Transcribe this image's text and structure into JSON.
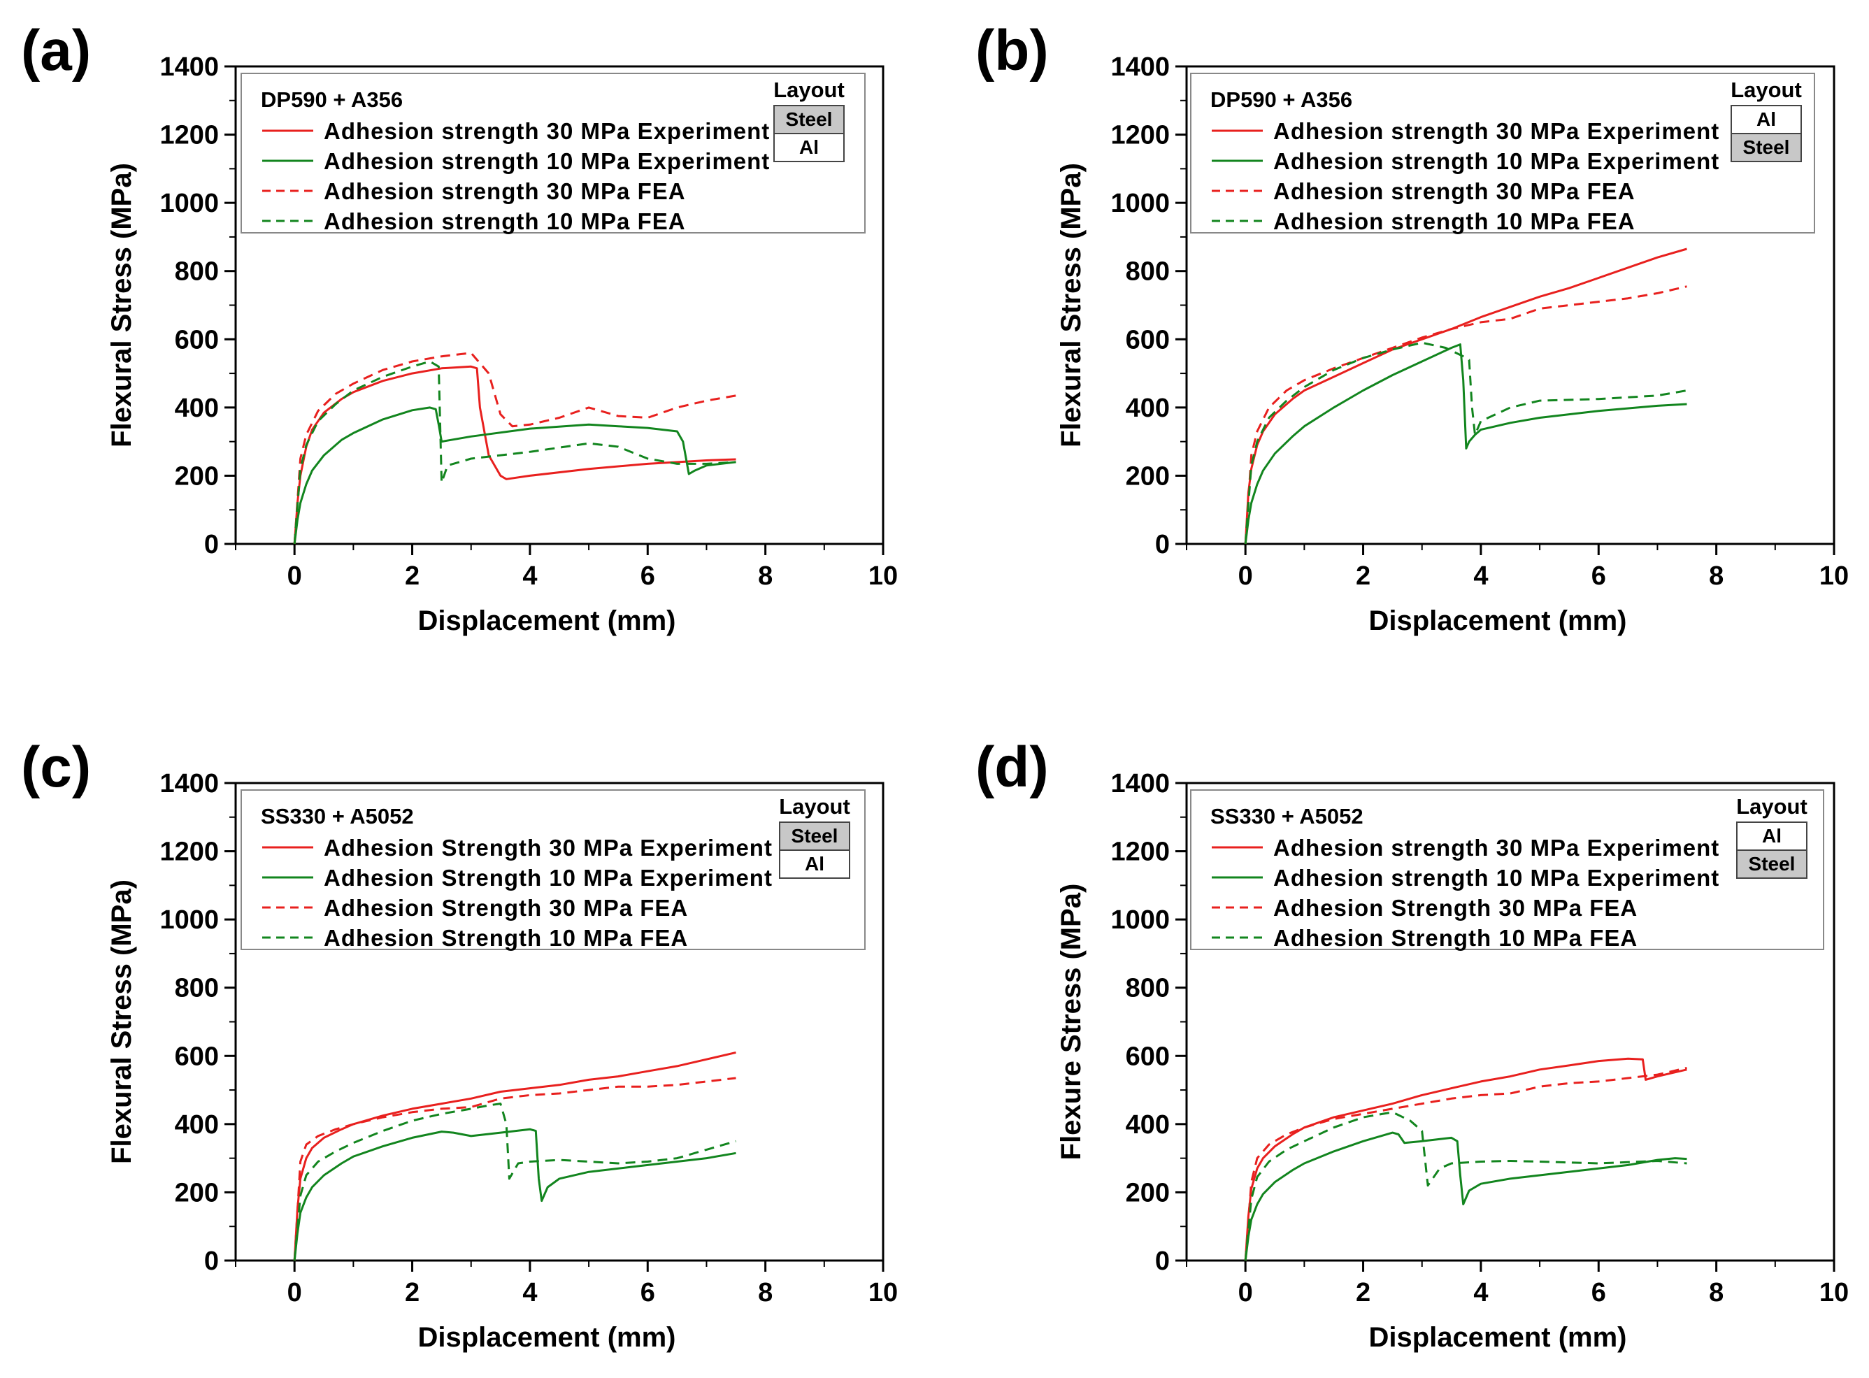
{
  "figure_colors": {
    "experiment_30": "#e8201e",
    "experiment_10": "#12851e",
    "fea_30": "#e8201e",
    "fea_10": "#12851e",
    "steel_fill": "#c8c8c8",
    "al_fill": "#ffffff"
  },
  "chart_data": [
    {
      "type": "line",
      "panel": "(a)",
      "xlabel": "Displacement (mm)",
      "ylabel": "Flexural Stress (MPa)",
      "xlim": [
        -1,
        10
      ],
      "ylim": [
        0,
        1400
      ],
      "xticks": [
        0,
        2,
        4,
        6,
        8,
        10
      ],
      "yticks": [
        0,
        200,
        400,
        600,
        800,
        1000,
        1200,
        1400
      ],
      "legend_title": "DP590 + A356",
      "layout_title": "Layout",
      "layout": [
        {
          "label": "Steel",
          "fill": "steel"
        },
        {
          "label": "Al",
          "fill": "al"
        }
      ],
      "series": [
        {
          "name": "Adhesion strength 30 MPa Experiment",
          "color": "#e8201e",
          "style": "solid",
          "x": [
            0,
            0.05,
            0.1,
            0.2,
            0.3,
            0.5,
            0.8,
            1.0,
            1.5,
            2.0,
            2.5,
            3.0,
            3.1,
            3.15,
            3.3,
            3.5,
            3.6,
            4.0,
            5.0,
            6.0,
            7.0,
            7.5
          ],
          "y": [
            0,
            120,
            200,
            285,
            335,
            385,
            425,
            445,
            478,
            500,
            515,
            520,
            515,
            400,
            260,
            200,
            190,
            200,
            220,
            235,
            245,
            248
          ]
        },
        {
          "name": "Adhesion strength 10 MPa Experiment",
          "color": "#12851e",
          "style": "solid",
          "x": [
            0,
            0.05,
            0.1,
            0.2,
            0.3,
            0.5,
            0.8,
            1.0,
            1.5,
            2.0,
            2.3,
            2.4,
            2.45,
            2.5,
            3.0,
            4.0,
            5.0,
            5.5,
            6.0,
            6.5,
            6.6,
            6.7,
            6.8,
            7.0,
            7.5
          ],
          "y": [
            0,
            70,
            120,
            175,
            215,
            260,
            305,
            325,
            365,
            392,
            400,
            395,
            350,
            300,
            315,
            338,
            350,
            345,
            340,
            330,
            300,
            205,
            215,
            230,
            240
          ]
        },
        {
          "name": "Adhesion strength 30 MPa FEA",
          "color": "#e8201e",
          "style": "dashed",
          "x": [
            0,
            0.1,
            0.2,
            0.4,
            0.7,
            1.0,
            1.5,
            2.0,
            2.5,
            3.0,
            3.3,
            3.5,
            3.7,
            4.0,
            4.5,
            5.0,
            5.5,
            6.0,
            6.5,
            7.0,
            7.5
          ],
          "y": [
            0,
            250,
            320,
            390,
            440,
            470,
            510,
            535,
            550,
            560,
            500,
            380,
            345,
            350,
            370,
            400,
            375,
            370,
            400,
            420,
            435
          ]
        },
        {
          "name": "Adhesion strength 10 MPa FEA",
          "color": "#12851e",
          "style": "dashed",
          "x": [
            0,
            0.1,
            0.2,
            0.4,
            0.7,
            1.0,
            1.5,
            2.0,
            2.3,
            2.45,
            2.5,
            2.6,
            3.0,
            4.0,
            5.0,
            5.5,
            6.0,
            6.5,
            7.0,
            7.5
          ],
          "y": [
            0,
            220,
            290,
            360,
            410,
            450,
            490,
            520,
            535,
            520,
            180,
            230,
            250,
            270,
            295,
            285,
            250,
            235,
            235,
            240
          ]
        }
      ]
    },
    {
      "type": "line",
      "panel": "(b)",
      "xlabel": "Displacement (mm)",
      "ylabel": "Flexural Stress (MPa)",
      "xlim": [
        -1,
        10
      ],
      "ylim": [
        0,
        1400
      ],
      "xticks": [
        0,
        2,
        4,
        6,
        8,
        10
      ],
      "yticks": [
        0,
        200,
        400,
        600,
        800,
        1000,
        1200,
        1400
      ],
      "legend_title": "DP590 + A356",
      "layout_title": "Layout",
      "layout": [
        {
          "label": "Al",
          "fill": "al"
        },
        {
          "label": "Steel",
          "fill": "steel"
        }
      ],
      "series": [
        {
          "name": "Adhesion strength 30 MPa Experiment",
          "color": "#e8201e",
          "style": "solid",
          "x": [
            0,
            0.05,
            0.1,
            0.2,
            0.3,
            0.5,
            0.8,
            1.0,
            1.5,
            2.0,
            2.5,
            3.0,
            3.5,
            4.0,
            4.5,
            5.0,
            5.5,
            6.0,
            6.5,
            7.0,
            7.5
          ],
          "y": [
            0,
            150,
            220,
            290,
            330,
            380,
            425,
            450,
            490,
            530,
            570,
            600,
            630,
            665,
            695,
            725,
            750,
            780,
            810,
            840,
            865
          ]
        },
        {
          "name": "Adhesion strength 10 MPa Experiment",
          "color": "#12851e",
          "style": "solid",
          "x": [
            0,
            0.05,
            0.1,
            0.2,
            0.3,
            0.5,
            0.8,
            1.0,
            1.5,
            2.0,
            2.5,
            3.0,
            3.5,
            3.65,
            3.7,
            3.75,
            3.8,
            3.9,
            4.0,
            4.5,
            5.0,
            6.0,
            7.0,
            7.5
          ],
          "y": [
            0,
            70,
            120,
            175,
            215,
            265,
            315,
            345,
            400,
            450,
            495,
            535,
            575,
            585,
            480,
            280,
            300,
            320,
            335,
            355,
            370,
            390,
            405,
            410
          ]
        },
        {
          "name": "Adhesion strength 30 MPa FEA",
          "color": "#e8201e",
          "style": "dashed",
          "x": [
            0,
            0.1,
            0.2,
            0.4,
            0.7,
            1.0,
            1.5,
            2.0,
            2.5,
            3.0,
            3.5,
            4.0,
            4.5,
            5.0,
            5.5,
            6.0,
            6.5,
            7.0,
            7.5
          ],
          "y": [
            0,
            260,
            330,
            400,
            450,
            480,
            515,
            545,
            575,
            605,
            630,
            650,
            660,
            690,
            700,
            710,
            720,
            735,
            755
          ]
        },
        {
          "name": "Adhesion strength 10 MPa FEA",
          "color": "#12851e",
          "style": "dashed",
          "x": [
            0,
            0.1,
            0.2,
            0.4,
            0.7,
            1.0,
            1.5,
            2.0,
            2.5,
            3.0,
            3.4,
            3.7,
            3.8,
            3.85,
            3.9,
            4.0,
            4.5,
            5.0,
            6.0,
            7.0,
            7.5
          ],
          "y": [
            0,
            230,
            300,
            370,
            420,
            460,
            510,
            545,
            570,
            590,
            575,
            550,
            540,
            400,
            320,
            360,
            400,
            420,
            425,
            435,
            450
          ]
        }
      ]
    },
    {
      "type": "line",
      "panel": "(c)",
      "xlabel": "Displacement (mm)",
      "ylabel": "Flexural Stress (MPa)",
      "xlim": [
        -1,
        10
      ],
      "ylim": [
        0,
        1400
      ],
      "xticks": [
        0,
        2,
        4,
        6,
        8,
        10
      ],
      "yticks": [
        0,
        200,
        400,
        600,
        800,
        1000,
        1200,
        1400
      ],
      "legend_title": "SS330 + A5052",
      "layout_title": "Layout",
      "layout": [
        {
          "label": "Steel",
          "fill": "steel"
        },
        {
          "label": "Al",
          "fill": "al"
        }
      ],
      "series": [
        {
          "name": "Adhesion Strength 30 MPa Experiment",
          "color": "#e8201e",
          "style": "solid",
          "x": [
            0,
            0.05,
            0.1,
            0.2,
            0.3,
            0.5,
            0.8,
            1.0,
            1.5,
            2.0,
            2.5,
            3.0,
            3.5,
            4.0,
            4.5,
            5.0,
            5.5,
            6.0,
            6.5,
            7.0,
            7.5
          ],
          "y": [
            0,
            150,
            240,
            300,
            330,
            360,
            385,
            400,
            425,
            445,
            460,
            475,
            495,
            505,
            515,
            530,
            540,
            555,
            570,
            590,
            610
          ]
        },
        {
          "name": "Adhesion Strength 10 MPa Experiment",
          "color": "#12851e",
          "style": "solid",
          "x": [
            0,
            0.05,
            0.1,
            0.2,
            0.3,
            0.5,
            0.8,
            1.0,
            1.5,
            2.0,
            2.5,
            2.7,
            3.0,
            3.5,
            4.0,
            4.1,
            4.15,
            4.2,
            4.3,
            4.5,
            5.0,
            6.0,
            7.0,
            7.5
          ],
          "y": [
            0,
            80,
            140,
            185,
            215,
            250,
            285,
            305,
            335,
            360,
            378,
            375,
            365,
            375,
            385,
            380,
            240,
            175,
            215,
            240,
            260,
            280,
            300,
            315
          ]
        },
        {
          "name": "Adhesion Strength 30 MPa FEA",
          "color": "#e8201e",
          "style": "dashed",
          "x": [
            0,
            0.1,
            0.2,
            0.4,
            0.7,
            1.0,
            1.5,
            2.0,
            2.5,
            3.0,
            3.5,
            4.0,
            4.5,
            5.0,
            5.5,
            6.0,
            6.5,
            7.0,
            7.5
          ],
          "y": [
            0,
            290,
            340,
            365,
            385,
            400,
            420,
            435,
            445,
            450,
            475,
            485,
            490,
            500,
            510,
            510,
            515,
            525,
            535
          ]
        },
        {
          "name": "Adhesion Strength 10 MPa FEA",
          "color": "#12851e",
          "style": "dashed",
          "x": [
            0,
            0.1,
            0.2,
            0.4,
            0.7,
            1.0,
            1.5,
            2.0,
            2.5,
            3.0,
            3.3,
            3.5,
            3.6,
            3.65,
            3.8,
            4.0,
            4.5,
            5.0,
            5.5,
            6.0,
            6.5,
            7.0,
            7.5
          ],
          "y": [
            0,
            190,
            250,
            290,
            320,
            345,
            380,
            410,
            430,
            445,
            455,
            460,
            400,
            240,
            285,
            290,
            295,
            290,
            285,
            290,
            300,
            325,
            350
          ]
        }
      ]
    },
    {
      "type": "line",
      "panel": "(d)",
      "xlabel": "Displacement (mm)",
      "ylabel": "Flexure Stress (MPa)",
      "xlim": [
        -1,
        10
      ],
      "ylim": [
        0,
        1400
      ],
      "xticks": [
        0,
        2,
        4,
        6,
        8,
        10
      ],
      "yticks": [
        0,
        200,
        400,
        600,
        800,
        1000,
        1200,
        1400
      ],
      "legend_title": "SS330 + A5052",
      "layout_title": "Layout",
      "layout": [
        {
          "label": "Al",
          "fill": "al"
        },
        {
          "label": "Steel",
          "fill": "steel"
        }
      ],
      "series": [
        {
          "name": "Adhesion strength 30 MPa Experiment",
          "color": "#e8201e",
          "style": "solid",
          "x": [
            0,
            0.05,
            0.1,
            0.2,
            0.3,
            0.5,
            0.8,
            1.0,
            1.5,
            2.0,
            2.5,
            3.0,
            3.5,
            4.0,
            4.5,
            5.0,
            5.5,
            6.0,
            6.5,
            6.75,
            6.8,
            7.0,
            7.5
          ],
          "y": [
            0,
            130,
            210,
            270,
            300,
            335,
            370,
            390,
            420,
            440,
            460,
            485,
            505,
            525,
            540,
            560,
            572,
            585,
            592,
            590,
            530,
            540,
            560
          ]
        },
        {
          "name": "Adhesion strength 10 MPa Experiment",
          "color": "#12851e",
          "style": "solid",
          "x": [
            0,
            0.05,
            0.1,
            0.2,
            0.3,
            0.5,
            0.8,
            1.0,
            1.5,
            2.0,
            2.5,
            2.6,
            2.7,
            3.0,
            3.5,
            3.6,
            3.65,
            3.7,
            3.8,
            4.0,
            4.5,
            5.0,
            6.0,
            6.5,
            7.0,
            7.3,
            7.5
          ],
          "y": [
            0,
            70,
            120,
            165,
            195,
            230,
            265,
            285,
            320,
            350,
            375,
            370,
            345,
            350,
            360,
            350,
            250,
            165,
            205,
            225,
            240,
            250,
            270,
            280,
            295,
            300,
            298
          ]
        },
        {
          "name": "Adhesion Strength 30 MPa FEA",
          "color": "#e8201e",
          "style": "dashed",
          "x": [
            0,
            0.1,
            0.2,
            0.4,
            0.7,
            1.0,
            1.5,
            2.0,
            2.5,
            3.0,
            3.5,
            4.0,
            4.5,
            5.0,
            5.5,
            6.0,
            6.5,
            7.0,
            7.5
          ],
          "y": [
            0,
            230,
            300,
            340,
            370,
            390,
            415,
            430,
            445,
            460,
            475,
            485,
            490,
            510,
            520,
            525,
            535,
            545,
            565
          ]
        },
        {
          "name": "Adhesion Strength 10 MPa FEA",
          "color": "#12851e",
          "style": "dashed",
          "x": [
            0,
            0.1,
            0.2,
            0.4,
            0.7,
            1.0,
            1.5,
            2.0,
            2.5,
            2.8,
            3.0,
            3.05,
            3.1,
            3.3,
            3.5,
            4.0,
            4.5,
            5.0,
            6.0,
            7.0,
            7.5
          ],
          "y": [
            0,
            180,
            245,
            290,
            325,
            350,
            390,
            420,
            435,
            410,
            380,
            300,
            220,
            270,
            285,
            290,
            292,
            290,
            285,
            292,
            285
          ]
        }
      ]
    }
  ]
}
